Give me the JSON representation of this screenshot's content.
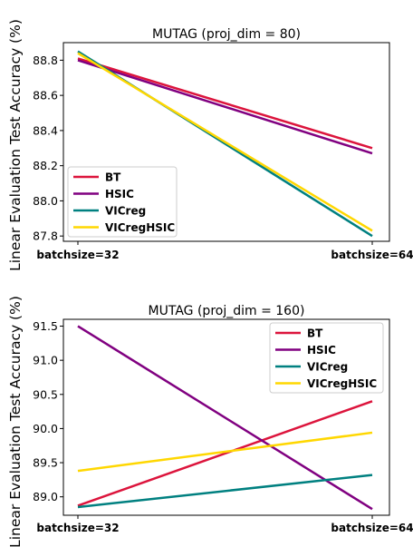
{
  "chart_data": [
    {
      "type": "line",
      "title": "MUTAG (proj_dim = 80)",
      "ylabel": "Linear Evaluation Test Accuracy (%)",
      "categories": [
        "batchsize=32",
        "batchsize=64"
      ],
      "ylim": [
        87.77,
        88.9
      ],
      "yticks": [
        "88.8",
        "88.6",
        "88.4",
        "88.2",
        "88.0",
        "87.8"
      ],
      "legend_position": "lower-left",
      "series": [
        {
          "name": "BT",
          "color": "#dc143c",
          "values": [
            88.81,
            88.3
          ]
        },
        {
          "name": "HSIC",
          "color": "#800080",
          "values": [
            88.8,
            88.27
          ]
        },
        {
          "name": "VICreg",
          "color": "#008080",
          "values": [
            88.85,
            87.8
          ]
        },
        {
          "name": "VICregHSIC",
          "color": "#ffd700",
          "values": [
            88.84,
            87.83
          ]
        }
      ]
    },
    {
      "type": "line",
      "title": "MUTAG (proj_dim = 160)",
      "ylabel": "Linear Evaluation Test Accuracy (%)",
      "categories": [
        "batchsize=32",
        "batchsize=64"
      ],
      "ylim": [
        88.73,
        91.6
      ],
      "yticks": [
        "91.5",
        "91.0",
        "90.5",
        "90.0",
        "89.5",
        "89.0"
      ],
      "legend_position": "upper-right",
      "series": [
        {
          "name": "BT",
          "color": "#dc143c",
          "values": [
            88.87,
            90.4
          ]
        },
        {
          "name": "HSIC",
          "color": "#800080",
          "values": [
            91.5,
            88.82
          ]
        },
        {
          "name": "VICreg",
          "color": "#008080",
          "values": [
            88.85,
            89.32
          ]
        },
        {
          "name": "VICregHSIC",
          "color": "#ffd700",
          "values": [
            89.38,
            89.94
          ]
        }
      ]
    }
  ]
}
